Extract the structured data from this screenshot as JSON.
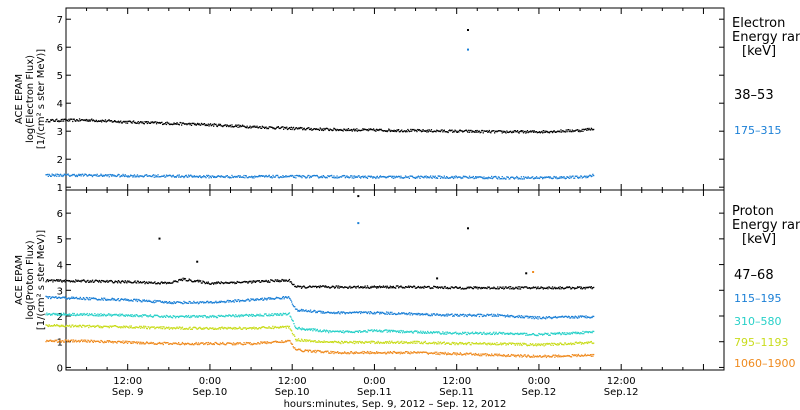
{
  "chart_data": [
    {
      "type": "scatter",
      "ylabel_lines": [
        "ACE EPAM",
        "log(Electron Flux)",
        "[1/(cm² s ster MeV)]"
      ],
      "ylim": [
        0.9,
        7.4
      ],
      "yticks": [
        1,
        2,
        3,
        4,
        5,
        6,
        7
      ],
      "legend": {
        "title_lines": [
          "Electron",
          "Energy ran",
          "[keV]"
        ],
        "placement": "right"
      },
      "series": [
        {
          "name": "38–53",
          "color": "#000000",
          "points": [
            [
              0,
              3.4
            ],
            [
              6,
              3.42
            ],
            [
              12,
              3.35
            ],
            [
              18,
              3.3
            ],
            [
              24,
              3.25
            ],
            [
              30,
              3.18
            ],
            [
              36,
              3.12
            ],
            [
              42,
              3.08
            ],
            [
              48,
              3.06
            ],
            [
              54,
              3.04
            ],
            [
              60,
              3.02
            ],
            [
              66,
              3.0
            ],
            [
              72,
              3.0
            ],
            [
              78,
              3.05
            ],
            [
              80,
              3.12
            ]
          ],
          "spikes": [
            [
              61.5,
              6.65
            ]
          ]
        },
        {
          "name": "175–315",
          "color": "#1a7fd6",
          "points": [
            [
              0,
              1.45
            ],
            [
              6,
              1.45
            ],
            [
              12,
              1.43
            ],
            [
              18,
              1.42
            ],
            [
              24,
              1.4
            ],
            [
              30,
              1.4
            ],
            [
              36,
              1.4
            ],
            [
              42,
              1.4
            ],
            [
              48,
              1.38
            ],
            [
              54,
              1.38
            ],
            [
              60,
              1.38
            ],
            [
              66,
              1.36
            ],
            [
              72,
              1.36
            ],
            [
              78,
              1.38
            ],
            [
              80,
              1.45
            ]
          ],
          "spikes": [
            [
              61.5,
              5.95
            ]
          ]
        }
      ]
    },
    {
      "type": "scatter",
      "ylabel_lines": [
        "ACE EPAM",
        "log(Proton Flux)",
        "[1/(cm² s ster MeV)]"
      ],
      "ylim": [
        -0.1,
        6.9
      ],
      "yticks": [
        0,
        1,
        2,
        3,
        4,
        5,
        6
      ],
      "legend": {
        "title_lines": [
          "Proton",
          "Energy ran",
          "[keV]"
        ],
        "placement": "right"
      },
      "series": [
        {
          "name": "47–68",
          "color": "#000000",
          "points": [
            [
              0,
              3.4
            ],
            [
              6,
              3.38
            ],
            [
              12,
              3.35
            ],
            [
              18,
              3.3
            ],
            [
              20,
              3.45
            ],
            [
              24,
              3.3
            ],
            [
              30,
              3.35
            ],
            [
              34,
              3.4
            ],
            [
              35.5,
              3.4
            ],
            [
              36.5,
              3.15
            ],
            [
              42,
              3.15
            ],
            [
              48,
              3.15
            ],
            [
              54,
              3.15
            ],
            [
              60,
              3.12
            ],
            [
              66,
              3.12
            ],
            [
              72,
              3.12
            ],
            [
              80,
              3.12
            ]
          ],
          "spikes": [
            [
              16.5,
              5.05
            ],
            [
              22,
              4.15
            ],
            [
              45.5,
              6.7
            ],
            [
              57,
              3.5
            ],
            [
              70,
              3.7
            ],
            [
              61.5,
              5.45
            ]
          ]
        },
        {
          "name": "115–195",
          "color": "#1a7fd6",
          "points": [
            [
              0,
              2.75
            ],
            [
              6,
              2.7
            ],
            [
              12,
              2.65
            ],
            [
              18,
              2.55
            ],
            [
              24,
              2.55
            ],
            [
              30,
              2.65
            ],
            [
              35.5,
              2.75
            ],
            [
              36.5,
              2.25
            ],
            [
              42,
              2.15
            ],
            [
              48,
              2.15
            ],
            [
              54,
              2.1
            ],
            [
              60,
              2.05
            ],
            [
              66,
              2.05
            ],
            [
              72,
              1.95
            ],
            [
              80,
              2.0
            ]
          ],
          "spikes": [
            [
              45.5,
              5.65
            ]
          ]
        },
        {
          "name": "310–580",
          "color": "#27d0c8",
          "points": [
            [
              0,
              2.1
            ],
            [
              6,
              2.08
            ],
            [
              12,
              2.05
            ],
            [
              18,
              2.0
            ],
            [
              24,
              2.0
            ],
            [
              30,
              2.05
            ],
            [
              35.5,
              2.1
            ],
            [
              36.5,
              1.55
            ],
            [
              42,
              1.4
            ],
            [
              48,
              1.45
            ],
            [
              54,
              1.4
            ],
            [
              60,
              1.35
            ],
            [
              66,
              1.35
            ],
            [
              72,
              1.3
            ],
            [
              80,
              1.4
            ]
          ],
          "spikes": []
        },
        {
          "name": "795–1193",
          "color": "#c9dc1c",
          "points": [
            [
              0,
              1.65
            ],
            [
              6,
              1.62
            ],
            [
              12,
              1.6
            ],
            [
              18,
              1.55
            ],
            [
              24,
              1.55
            ],
            [
              30,
              1.55
            ],
            [
              35.5,
              1.6
            ],
            [
              36.5,
              1.1
            ],
            [
              42,
              1.0
            ],
            [
              48,
              1.0
            ],
            [
              54,
              1.0
            ],
            [
              60,
              0.95
            ],
            [
              66,
              0.95
            ],
            [
              72,
              0.9
            ],
            [
              80,
              1.0
            ]
          ],
          "spikes": []
        },
        {
          "name": "1060–1900",
          "color": "#ef8a1e",
          "points": [
            [
              0,
              1.05
            ],
            [
              6,
              1.05
            ],
            [
              12,
              1.0
            ],
            [
              18,
              0.95
            ],
            [
              24,
              0.95
            ],
            [
              30,
              0.95
            ],
            [
              35.5,
              1.05
            ],
            [
              36.5,
              0.7
            ],
            [
              42,
              0.6
            ],
            [
              48,
              0.6
            ],
            [
              54,
              0.6
            ],
            [
              60,
              0.55
            ],
            [
              66,
              0.5
            ],
            [
              72,
              0.45
            ],
            [
              80,
              0.5
            ]
          ],
          "spikes": [
            [
              71,
              3.75
            ]
          ]
        }
      ]
    }
  ],
  "x_axis": {
    "unit": "hours from Sep. 9, 2012 00:00",
    "xlim": [
      3,
      99
    ],
    "xlabel": "hours:minutes, Sep.  9, 2012 – Sep. 12, 2012",
    "major_ticks": [
      {
        "hour": 12,
        "time": "12:00",
        "date": "Sep. 9"
      },
      {
        "hour": 24,
        "time": "0:00",
        "date": "Sep.10"
      },
      {
        "hour": 36,
        "time": "12:00",
        "date": "Sep.10"
      },
      {
        "hour": 48,
        "time": "0:00",
        "date": "Sep.11"
      },
      {
        "hour": 60,
        "time": "12:00",
        "date": "Sep.11"
      },
      {
        "hour": 72,
        "time": "0:00",
        "date": "Sep.12"
      },
      {
        "hour": 84,
        "time": "12:00",
        "date": "Sep.12"
      }
    ]
  }
}
